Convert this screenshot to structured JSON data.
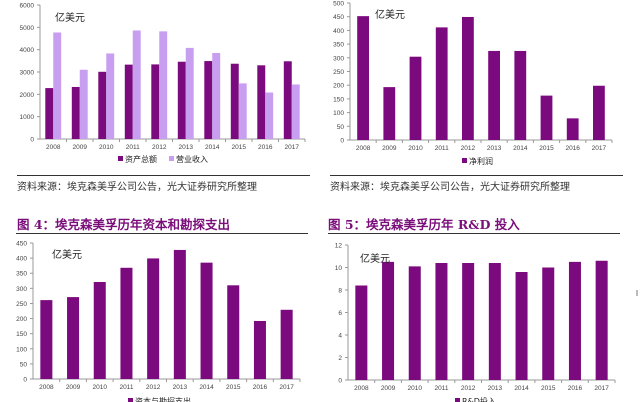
{
  "source_text": "资料来源：埃克森美孚公司公告，光大证券研究所整理",
  "figures": {
    "fig4_title": "图 4：埃克森美孚历年资本和勘探支出",
    "fig5_title": "图 5：埃克森美孚历年 R&D 投入"
  },
  "colors": {
    "primary": "#7b0a7e",
    "secondary": "#c89ef0",
    "title": "#7a0f7a"
  },
  "chart_data": [
    {
      "type": "bar",
      "unit_label": "亿美元",
      "categories": [
        "2008",
        "2009",
        "2010",
        "2011",
        "2012",
        "2013",
        "2014",
        "2015",
        "2016",
        "2017"
      ],
      "series": [
        {
          "name": "资产总额",
          "values": [
            2280,
            2330,
            3010,
            3330,
            3340,
            3460,
            3490,
            3370,
            3300,
            3480
          ]
        },
        {
          "name": "营业收入",
          "values": [
            4770,
            3100,
            3830,
            4860,
            4820,
            4080,
            3850,
            2490,
            2080,
            2440
          ]
        }
      ],
      "yticks": [
        0,
        1000,
        2000,
        3000,
        4000,
        5000,
        6000
      ],
      "ylim": [
        0,
        6000
      ]
    },
    {
      "type": "bar",
      "unit_label": "亿美元",
      "categories": [
        "2008",
        "2009",
        "2010",
        "2011",
        "2012",
        "2013",
        "2014",
        "2015",
        "2016",
        "2017"
      ],
      "series": [
        {
          "name": "净利润",
          "values": [
            452,
            193,
            304,
            411,
            449,
            325,
            325,
            162,
            79,
            198
          ]
        }
      ],
      "yticks": [
        0,
        50,
        100,
        150,
        200,
        250,
        300,
        350,
        400,
        450,
        500
      ],
      "ylim": [
        0,
        500
      ]
    },
    {
      "type": "bar",
      "unit_label": "亿美元",
      "categories": [
        "2008",
        "2009",
        "2010",
        "2011",
        "2012",
        "2013",
        "2014",
        "2015",
        "2016",
        "2017"
      ],
      "series": [
        {
          "name": "资本与勘探支出",
          "values": [
            261,
            271,
            321,
            368,
            399,
            427,
            385,
            310,
            192,
            229
          ]
        }
      ],
      "yticks": [
        0,
        50,
        100,
        150,
        200,
        250,
        300,
        350,
        400,
        450
      ],
      "ylim": [
        0,
        450
      ]
    },
    {
      "type": "bar",
      "unit_label": "亿美元",
      "categories": [
        "2008",
        "2009",
        "2010",
        "2011",
        "2012",
        "2013",
        "2014",
        "2015",
        "2016",
        "2017"
      ],
      "series": [
        {
          "name": "R&D投入",
          "values": [
            8.4,
            10.5,
            10.1,
            10.4,
            10.4,
            10.4,
            9.6,
            10.0,
            10.5,
            10.6
          ]
        }
      ],
      "yticks": [
        0,
        2,
        4,
        6,
        8,
        10,
        12
      ],
      "ylim": [
        0,
        12
      ]
    }
  ]
}
